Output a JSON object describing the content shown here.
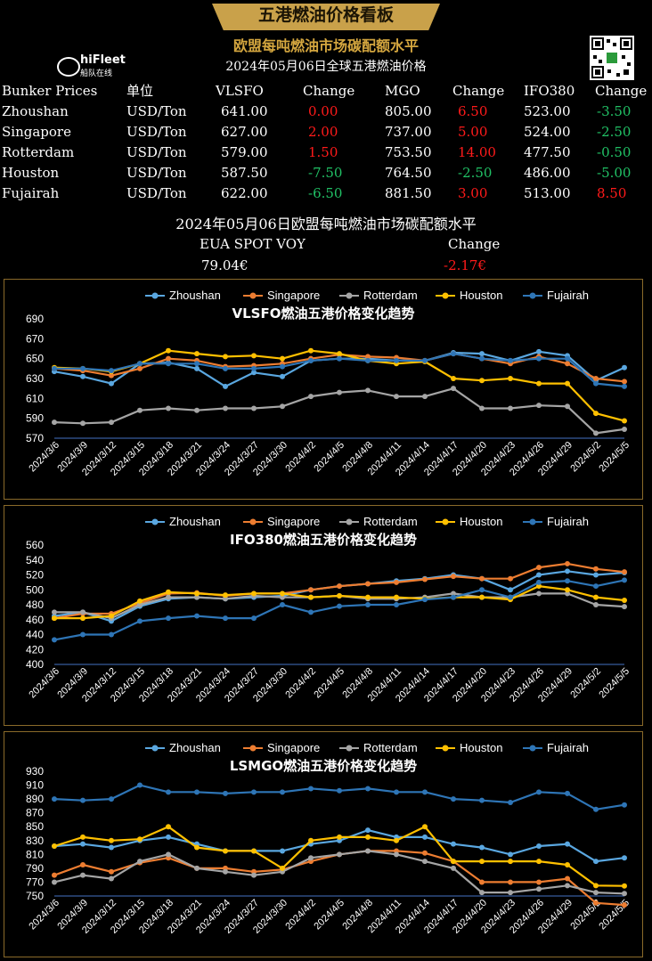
{
  "header": {
    "banner": "五港燃油价格看板",
    "subtitle": "欧盟每吨燃油市场碳配额水平",
    "date_line": "2024年05月06日全球五港燃油价格",
    "logo_text": "hiFleet",
    "logo_sub": "船队在线"
  },
  "colors": {
    "red": "#ff1a1a",
    "green": "#21c065",
    "gold": "#d4a63f"
  },
  "price_table": {
    "headers": [
      "Bunker Prices",
      "单位",
      "VLSFO",
      "Change",
      "MGO",
      "Change",
      "IFO380",
      "Change"
    ],
    "rows": [
      {
        "port": "Zhoushan",
        "unit": "USD/Ton",
        "vlsfo": "641.00",
        "vlsfo_chg": "0.00",
        "mgo": "805.00",
        "mgo_chg": "6.50",
        "ifo": "523.00",
        "ifo_chg": "-3.50"
      },
      {
        "port": "Singapore",
        "unit": "USD/Ton",
        "vlsfo": "627.00",
        "vlsfo_chg": "2.00",
        "mgo": "737.00",
        "mgo_chg": "5.00",
        "ifo": "524.00",
        "ifo_chg": "-2.50"
      },
      {
        "port": "Rotterdam",
        "unit": "USD/Ton",
        "vlsfo": "579.00",
        "vlsfo_chg": "1.50",
        "mgo": "753.50",
        "mgo_chg": "14.00",
        "ifo": "477.50",
        "ifo_chg": "-0.50"
      },
      {
        "port": "Houston",
        "unit": "USD/Ton",
        "vlsfo": "587.50",
        "vlsfo_chg": "-7.50",
        "mgo": "764.50",
        "mgo_chg": "-2.50",
        "ifo": "486.00",
        "ifo_chg": "-5.00"
      },
      {
        "port": "Fujairah",
        "unit": "USD/Ton",
        "vlsfo": "622.00",
        "vlsfo_chg": "-6.50",
        "mgo": "881.50",
        "mgo_chg": "3.00",
        "ifo": "513.00",
        "ifo_chg": "8.50"
      }
    ]
  },
  "eua": {
    "title": "2024年05月06日欧盟每吨燃油市场碳配额水平",
    "label": "EUA SPOT VOY",
    "change_label": "Change",
    "value": "79.04€",
    "change": "-2.17€"
  },
  "chart_data": [
    {
      "type": "line",
      "title": "VLSFO燃油五港价格变化趋势",
      "x": [
        "2024/3/6",
        "2024/3/9",
        "2024/3/12",
        "2024/3/15",
        "2024/3/18",
        "2024/3/21",
        "2024/3/24",
        "2024/3/27",
        "2024/3/30",
        "2024/4/2",
        "2024/4/5",
        "2024/4/8",
        "2024/4/11",
        "2024/4/14",
        "2024/4/17",
        "2024/4/20",
        "2024/4/23",
        "2024/4/26",
        "2024/4/29",
        "2024/5/2",
        "2024/5/5"
      ],
      "ylim": [
        570,
        690
      ],
      "yticks": [
        570,
        590,
        610,
        630,
        650,
        670,
        690
      ],
      "legend_position": "top",
      "series": [
        {
          "name": "Zhoushan",
          "color": "#5aa7e0",
          "values": [
            637,
            632,
            625,
            645,
            646,
            640,
            622,
            636,
            632,
            648,
            650,
            650,
            648,
            648,
            656,
            655,
            648,
            657,
            653,
            628,
            641
          ]
        },
        {
          "name": "Singapore",
          "color": "#ed7d31",
          "values": [
            640,
            638,
            633,
            640,
            650,
            648,
            642,
            643,
            645,
            650,
            654,
            652,
            651,
            648,
            655,
            650,
            645,
            652,
            645,
            630,
            627
          ]
        },
        {
          "name": "Rotterdam",
          "color": "#a5a5a5",
          "values": [
            586,
            585,
            586,
            598,
            600,
            598,
            600,
            600,
            602,
            612,
            616,
            618,
            612,
            612,
            620,
            600,
            600,
            603,
            602,
            575,
            579
          ]
        },
        {
          "name": "Houston",
          "color": "#ffc000",
          "values": [
            641,
            640,
            637,
            645,
            658,
            655,
            652,
            653,
            650,
            658,
            655,
            648,
            645,
            647,
            630,
            628,
            630,
            625,
            625,
            595,
            587.5
          ]
        },
        {
          "name": "Fujairah",
          "color": "#2e75b6",
          "values": [
            640,
            640,
            638,
            645,
            645,
            645,
            640,
            640,
            642,
            648,
            650,
            648,
            648,
            648,
            655,
            650,
            648,
            650,
            650,
            625,
            622
          ]
        }
      ]
    },
    {
      "type": "line",
      "title": "IFO380燃油五港价格变化趋势",
      "x": [
        "2024/3/6",
        "2024/3/9",
        "2024/3/12",
        "2024/3/15",
        "2024/3/18",
        "2024/3/21",
        "2024/3/24",
        "2024/3/27",
        "2024/3/30",
        "2024/4/2",
        "2024/4/5",
        "2024/4/8",
        "2024/4/11",
        "2024/4/14",
        "2024/4/17",
        "2024/4/20",
        "2024/4/23",
        "2024/4/26",
        "2024/4/29",
        "2024/5/2",
        "2024/5/5"
      ],
      "ylim": [
        400,
        560
      ],
      "yticks": [
        400,
        420,
        440,
        460,
        480,
        500,
        520,
        540,
        560
      ],
      "legend_position": "top",
      "series": [
        {
          "name": "Zhoushan",
          "color": "#5aa7e0",
          "values": [
            465,
            470,
            458,
            478,
            488,
            490,
            488,
            490,
            492,
            500,
            505,
            508,
            512,
            515,
            520,
            515,
            500,
            520,
            525,
            520,
            523
          ]
        },
        {
          "name": "Singapore",
          "color": "#ed7d31",
          "values": [
            462,
            468,
            468,
            482,
            495,
            496,
            492,
            495,
            495,
            500,
            505,
            508,
            510,
            514,
            518,
            515,
            515,
            530,
            535,
            528,
            524
          ]
        },
        {
          "name": "Rotterdam",
          "color": "#a5a5a5",
          "values": [
            470,
            470,
            462,
            480,
            490,
            490,
            488,
            492,
            490,
            490,
            492,
            488,
            488,
            490,
            495,
            490,
            490,
            495,
            495,
            480,
            477.5
          ]
        },
        {
          "name": "Houston",
          "color": "#ffc000",
          "values": [
            462,
            462,
            465,
            485,
            497,
            495,
            493,
            495,
            495,
            490,
            492,
            490,
            490,
            488,
            490,
            490,
            487,
            505,
            500,
            490,
            486
          ]
        },
        {
          "name": "Fujairah",
          "color": "#2e75b6",
          "values": [
            433,
            440,
            440,
            458,
            462,
            465,
            462,
            462,
            480,
            470,
            478,
            480,
            480,
            487,
            490,
            500,
            490,
            510,
            512,
            505,
            513
          ]
        }
      ]
    },
    {
      "type": "line",
      "title": "LSMGO燃油五港价格变化趋势",
      "x": [
        "2024/3/6",
        "2024/3/9",
        "2024/3/12",
        "2024/3/15",
        "2024/3/18",
        "2024/3/21",
        "2024/3/24",
        "2024/3/27",
        "2024/3/30",
        "2024/4/2",
        "2024/4/5",
        "2024/4/8",
        "2024/4/11",
        "2024/4/14",
        "2024/4/17",
        "2024/4/20",
        "2024/4/23",
        "2024/4/26",
        "2024/4/29",
        "2024/5/2",
        "2024/5/5"
      ],
      "ylim": [
        750,
        930
      ],
      "yticks": [
        750,
        770,
        790,
        810,
        830,
        850,
        870,
        890,
        910,
        930
      ],
      "legend_position": "top",
      "series": [
        {
          "name": "Zhoushan",
          "color": "#5aa7e0",
          "values": [
            822,
            825,
            820,
            830,
            835,
            825,
            815,
            815,
            815,
            825,
            830,
            845,
            835,
            835,
            825,
            820,
            810,
            822,
            825,
            800,
            805
          ]
        },
        {
          "name": "Singapore",
          "color": "#ed7d31",
          "values": [
            780,
            795,
            785,
            798,
            805,
            790,
            790,
            785,
            788,
            800,
            810,
            815,
            815,
            812,
            800,
            770,
            770,
            770,
            775,
            740,
            737
          ]
        },
        {
          "name": "Rotterdam",
          "color": "#a5a5a5",
          "values": [
            770,
            780,
            775,
            800,
            810,
            790,
            785,
            780,
            785,
            805,
            810,
            815,
            810,
            800,
            790,
            755,
            755,
            760,
            765,
            755,
            753.5
          ]
        },
        {
          "name": "Houston",
          "color": "#ffc000",
          "values": [
            822,
            835,
            830,
            832,
            850,
            820,
            815,
            815,
            790,
            830,
            835,
            835,
            830,
            850,
            800,
            800,
            800,
            800,
            795,
            765,
            764.5
          ]
        },
        {
          "name": "Fujairah",
          "color": "#2e75b6",
          "values": [
            890,
            888,
            890,
            910,
            900,
            900,
            898,
            900,
            900,
            905,
            902,
            905,
            900,
            900,
            890,
            888,
            885,
            900,
            898,
            875,
            881.5
          ]
        }
      ]
    }
  ]
}
